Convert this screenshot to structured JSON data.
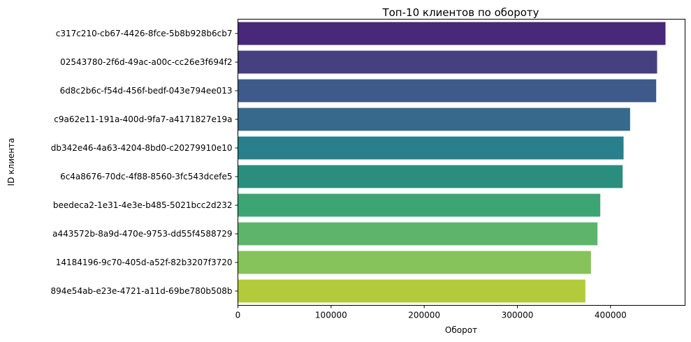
{
  "chart_data": {
    "type": "bar",
    "orientation": "horizontal",
    "title": "Топ-10 клиентов по обороту",
    "xlabel": "Оборот",
    "ylabel": "ID клиента",
    "xlim": [
      0,
      480000
    ],
    "xticks": [
      0,
      100000,
      200000,
      300000,
      400000
    ],
    "xtick_labels": [
      "0",
      "100000",
      "200000",
      "300000",
      "400000"
    ],
    "grid": false,
    "legend": "none",
    "categories": [
      "c317c210-cb67-4426-8fce-5b8b928b6cb7",
      "02543780-2f6d-49ac-a00c-cc26e3f694f2",
      "6d8c2b6c-f54d-456f-bedf-043e794ee013",
      "c9a62e11-191a-400d-9fa7-a4171827e19a",
      "db342e46-4a63-4204-8bd0-c20279910e10",
      "6c4a8676-70dc-4f88-8560-3fc543dcefe5",
      "beedeca2-1e31-4e3e-b485-5021bcc2d232",
      "a443572b-8a9d-470e-9753-dd55f4588729",
      "14184196-9c70-405d-a52f-82b3207f3720",
      "894e54ab-e23e-4721-a11d-69be780b508b"
    ],
    "values": [
      459000,
      450000,
      449000,
      421000,
      414000,
      413000,
      389000,
      386000,
      379000,
      373000
    ],
    "colors": [
      "#482878",
      "#45407f",
      "#3e5a8a",
      "#36698b",
      "#2a7f8c",
      "#2b8d7e",
      "#3ca574",
      "#5db56b",
      "#86c35a",
      "#b3ca3a"
    ]
  }
}
